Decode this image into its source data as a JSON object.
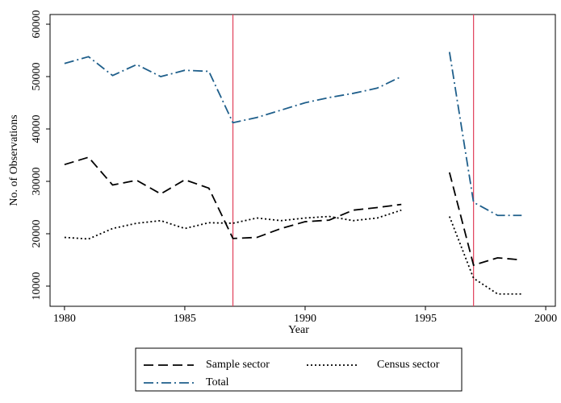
{
  "chart_data": {
    "type": "line",
    "xlabel": "Year",
    "ylabel": "No. of Observations",
    "x": [
      1980,
      1981,
      1982,
      1983,
      1984,
      1985,
      1986,
      1987,
      1988,
      1989,
      1990,
      1991,
      1992,
      1993,
      1994,
      1995,
      1996,
      1997,
      1998,
      1999
    ],
    "series": [
      {
        "name": "Sample sector",
        "color": "#000000",
        "style": "dashed",
        "values": [
          33200,
          34600,
          29300,
          30200,
          27600,
          30300,
          28700,
          19100,
          19300,
          21000,
          22300,
          22600,
          24500,
          25000,
          25600,
          null,
          31700,
          14000,
          15400,
          15000
        ]
      },
      {
        "name": "Census sector",
        "color": "#000000",
        "style": "dotted",
        "values": [
          19300,
          19000,
          21000,
          22000,
          22500,
          21000,
          22100,
          22000,
          23000,
          22500,
          23000,
          23300,
          22500,
          23000,
          24500,
          null,
          23300,
          11500,
          8500,
          8500
        ]
      },
      {
        "name": "Total",
        "color": "#1f5f8b",
        "style": "dashdot",
        "values": [
          52500,
          53800,
          50200,
          52300,
          50000,
          51200,
          51000,
          41200,
          42200,
          43600,
          45000,
          46000,
          46800,
          47800,
          50000,
          null,
          54700,
          26000,
          23500,
          23500
        ]
      }
    ],
    "xlim": [
      1979.4,
      2000.4
    ],
    "xticks": [
      1980,
      1985,
      1990,
      1995,
      2000
    ],
    "ylim": [
      6150,
      61850
    ],
    "yticks": [
      10000,
      20000,
      30000,
      40000,
      50000,
      60000
    ],
    "vlines": [
      1987,
      1997
    ],
    "vline_color": "#e0405a",
    "legend": "bottom"
  }
}
